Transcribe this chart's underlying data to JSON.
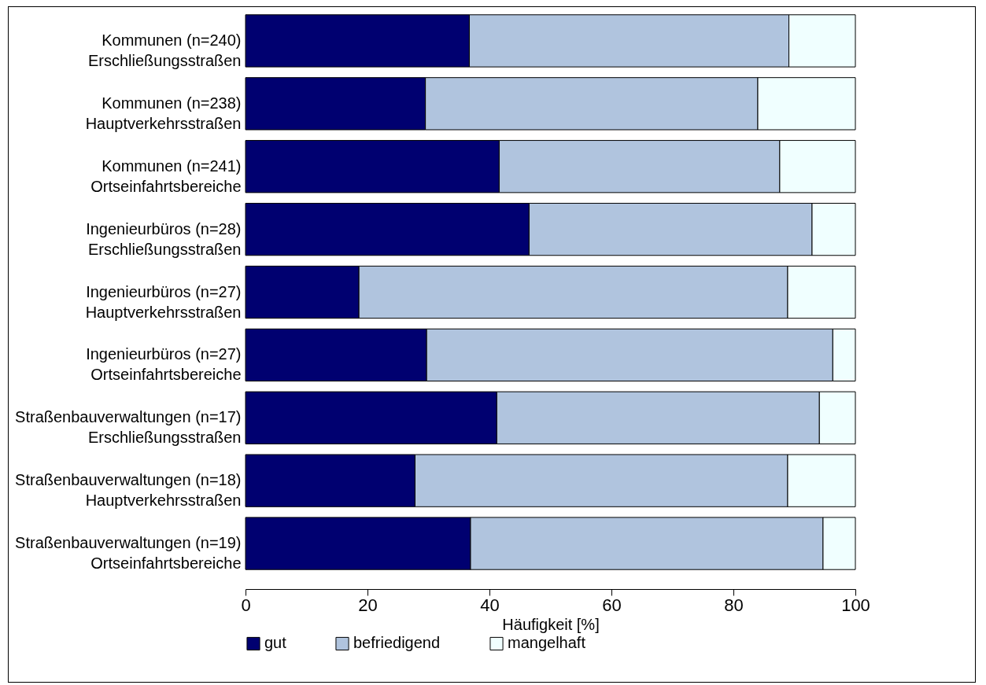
{
  "chart_data": {
    "type": "bar",
    "orientation": "horizontal",
    "stacked": true,
    "xlabel": "Häufigkeit [%]",
    "categories": [
      "Kommunen (n=240)\nErschließungsstraßen",
      "Kommunen (n=238)\nHauptverkehrsstraßen",
      "Kommunen (n=241)\nOrtseinfahrtsbereiche",
      "Ingenieurbüros (n=28)\nErschließungsstraßen",
      "Ingenieurbüros (n=27)\nHauptverkehrsstraßen",
      "Ingenieurbüros (n=27)\nOrtseinfahrtsbereiche",
      "Straßenbauverwaltungen (n=17)\nErschließungsstraßen",
      "Straßenbauverwaltungen (n=18)\nHauptverkehrsstraßen",
      "Straßenbauverwaltungen (n=19)\nOrtseinfahrtsbereiche"
    ],
    "series": [
      {
        "name": "gut",
        "color": "#000070",
        "values": [
          36.7,
          29.5,
          41.6,
          46.5,
          18.6,
          29.7,
          41.2,
          27.8,
          36.9
        ]
      },
      {
        "name": "befriedigend",
        "color": "#b0c4de",
        "values": [
          52.4,
          54.5,
          46.0,
          46.4,
          70.3,
          66.6,
          52.9,
          61.1,
          57.8
        ]
      },
      {
        "name": "mangelhaft",
        "color": "#f0ffff",
        "values": [
          10.9,
          16.0,
          12.4,
          7.1,
          11.1,
          3.7,
          5.9,
          11.1,
          5.3
        ]
      }
    ],
    "xlim": [
      0,
      100
    ],
    "xticks": [
      0,
      20,
      40,
      60,
      80,
      100
    ],
    "grid": false,
    "legend": "bottom"
  }
}
